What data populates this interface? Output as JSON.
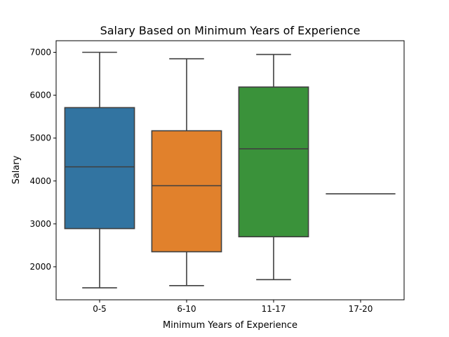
{
  "chart_data": {
    "type": "box",
    "title": "Salary Based on Minimum Years of Experience",
    "xlabel": "Minimum Years of Experience",
    "ylabel": "Salary",
    "ylim": [
      1230,
      7270
    ],
    "yticks": [
      2000,
      3000,
      4000,
      5000,
      6000,
      7000
    ],
    "yticklabels": [
      "2000",
      "3000",
      "4000",
      "5000",
      "6000",
      "7000"
    ],
    "grid": false,
    "categories": [
      "0-5",
      "6-10",
      "11-17",
      "17-20"
    ],
    "boxes": [
      {
        "category": "0-5",
        "whisker_low": 1510,
        "q1": 2890,
        "median": 4330,
        "q3": 5710,
        "whisker_high": 7000,
        "color": "#3274a1"
      },
      {
        "category": "6-10",
        "whisker_low": 1560,
        "q1": 2350,
        "median": 3890,
        "q3": 5170,
        "whisker_high": 6850,
        "color": "#e1812c"
      },
      {
        "category": "11-17",
        "whisker_low": 1700,
        "q1": 2700,
        "median": 4750,
        "q3": 6190,
        "whisker_high": 6950,
        "color": "#3a923a"
      },
      {
        "category": "17-20",
        "whisker_low": 3700,
        "q1": 3700,
        "median": 3700,
        "q3": 3700,
        "whisker_high": 3700,
        "color": "#c03d3e"
      }
    ],
    "line_color": "#3f3f3f"
  }
}
